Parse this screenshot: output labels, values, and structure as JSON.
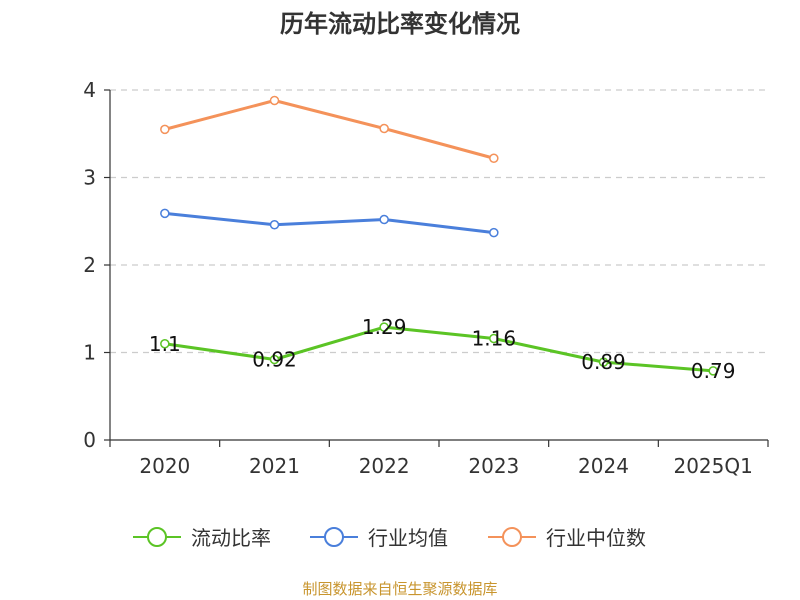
{
  "title": "历年流动比率变化情况",
  "source": "制图数据来自恒生聚源数据库",
  "chart_data": {
    "type": "line",
    "title": "历年流动比率变化情况",
    "categories": [
      "2020",
      "2021",
      "2022",
      "2023",
      "2024",
      "2025Q1"
    ],
    "ylim": [
      0,
      4
    ],
    "yticks": [
      "0",
      "1",
      "2",
      "3",
      "4"
    ],
    "grid": true,
    "legend_position": "bottom",
    "series": [
      {
        "name": "流动比率",
        "color": "#5bc425",
        "values": [
          1.1,
          0.92,
          1.29,
          1.16,
          0.89,
          0.79
        ],
        "labels": [
          "1.1",
          "0.92",
          "1.29",
          "1.16",
          "0.89",
          "0.79"
        ]
      },
      {
        "name": "行业均值",
        "color": "#4a7fdb",
        "values": [
          2.59,
          2.46,
          2.52,
          2.37,
          null,
          null
        ]
      },
      {
        "name": "行业中位数",
        "color": "#f4925a",
        "values": [
          3.55,
          3.88,
          3.56,
          3.22,
          null,
          null
        ]
      }
    ]
  }
}
